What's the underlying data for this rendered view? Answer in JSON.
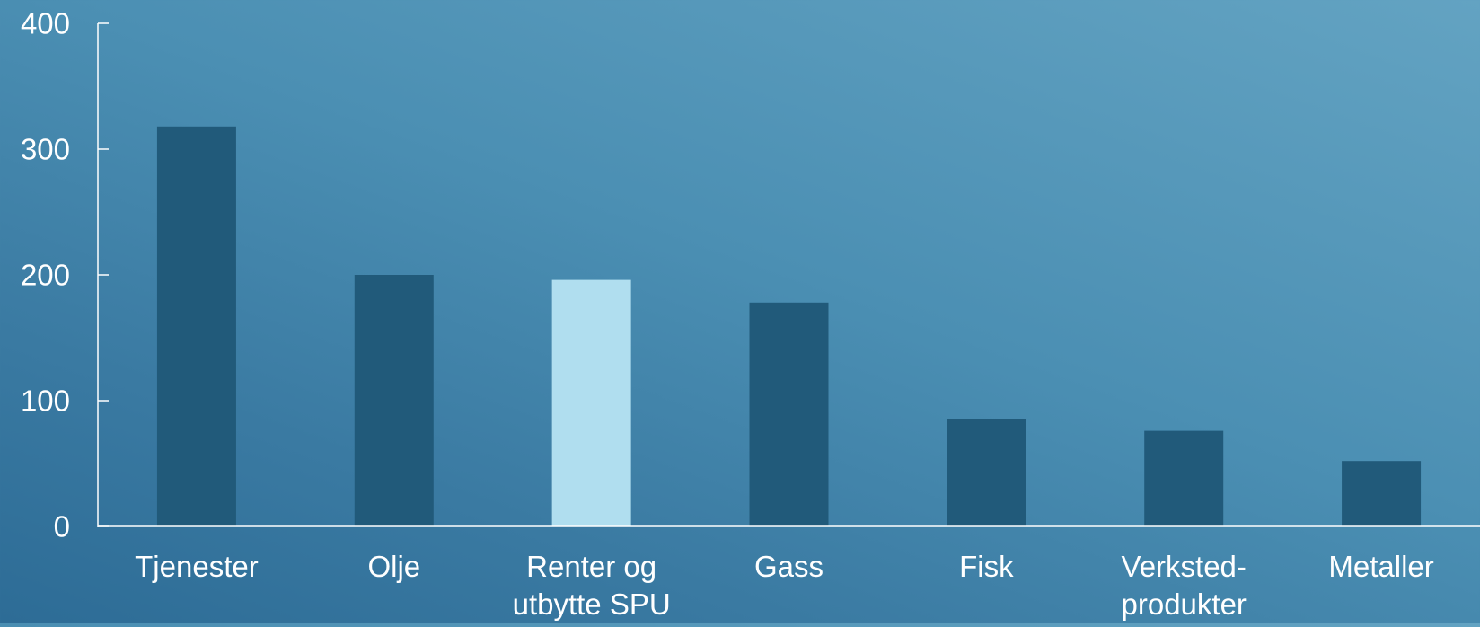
{
  "chart_data": {
    "type": "bar",
    "title": "",
    "xlabel": "",
    "ylabel": "",
    "ylim": [
      0,
      400
    ],
    "yticks": [
      0,
      100,
      200,
      300,
      400
    ],
    "grid": false,
    "legend": "none",
    "categories": [
      [
        "Tjenester"
      ],
      [
        "Olje"
      ],
      [
        "Renter og",
        "utbytte SPU"
      ],
      [
        "Gass"
      ],
      [
        "Fisk"
      ],
      [
        "Verksted-",
        "produkter"
      ],
      [
        "Metaller"
      ]
    ],
    "values": [
      318,
      200,
      196,
      178,
      85,
      76,
      52
    ],
    "highlight_index": 2,
    "colors": {
      "bar": "#215a7a",
      "highlight_bar": "#b0deef",
      "axis": "#ffffff",
      "text": "#ffffff"
    }
  }
}
